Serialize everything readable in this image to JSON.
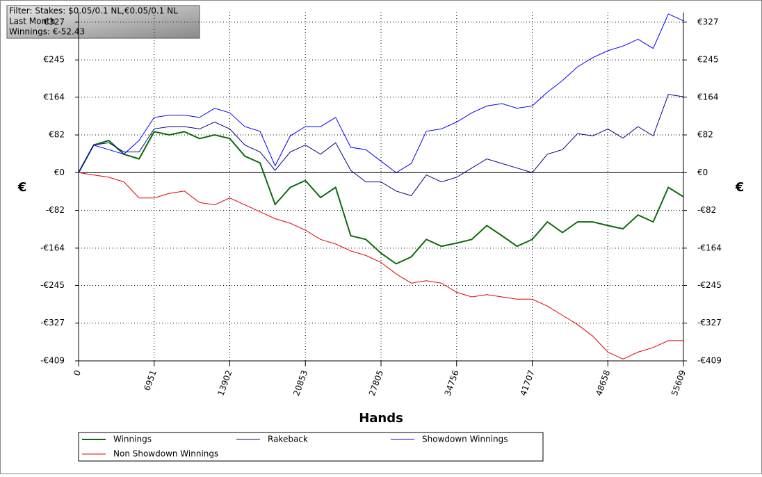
{
  "chart_data": {
    "type": "line",
    "info": [
      "Filter: Stakes: $0.05/0.1 NL,€0.05/0.1 NL",
      "Last Month",
      "Winnings: €-52.43"
    ],
    "x_label": "Hands",
    "y_label": "€",
    "x": [
      0,
      1390,
      2780,
      4170,
      5560,
      6951,
      8341,
      9731,
      11121,
      12512,
      13902,
      15292,
      16682,
      18072,
      19463,
      20853,
      22243,
      23633,
      25024,
      26414,
      27805,
      29195,
      30585,
      31975,
      33365,
      34756,
      36146,
      37536,
      38926,
      40316,
      41707,
      43097,
      44487,
      45877,
      47268,
      48658,
      50048,
      51438,
      52828,
      54219,
      55609
    ],
    "xlim": [
      0,
      55609
    ],
    "xticks": [
      0,
      6951,
      13902,
      20853,
      27805,
      34756,
      41707,
      48658,
      55609
    ],
    "ylim": [
      -409,
      348
    ],
    "yticks": [
      {
        "value": -409,
        "label": "-€409"
      },
      {
        "value": -327,
        "label": "-€327"
      },
      {
        "value": -245,
        "label": "-€245"
      },
      {
        "value": -164,
        "label": "-€164"
      },
      {
        "value": -82,
        "label": "-€82"
      },
      {
        "value": 0,
        "label": "€0"
      },
      {
        "value": 82,
        "label": "€82"
      },
      {
        "value": 164,
        "label": "€164"
      },
      {
        "value": 245,
        "label": "€245"
      },
      {
        "value": 327,
        "label": "€327"
      }
    ],
    "grid": true,
    "series": [
      {
        "name": "Winnings",
        "color": "#0b6a0b",
        "values": [
          0,
          60,
          70,
          40,
          30,
          89,
          82,
          89,
          74,
          82,
          74,
          36,
          21,
          -69,
          -32,
          -17,
          -54,
          -32,
          -137,
          -145,
          -175,
          -198,
          -183,
          -145,
          -160,
          -153,
          -145,
          -115,
          -137,
          -160,
          -145,
          -107,
          -130,
          -107,
          -107,
          -115,
          -122,
          -92,
          -107,
          -32,
          -52.43
        ]
      },
      {
        "name": "Rakeback",
        "color": "#000080",
        "values": [
          0,
          60,
          65,
          45,
          45,
          95,
          100,
          100,
          95,
          110,
          95,
          60,
          45,
          5,
          45,
          60,
          40,
          65,
          5,
          -20,
          -20,
          -40,
          -50,
          -5,
          -20,
          -10,
          10,
          30,
          20,
          10,
          0,
          40,
          50,
          85,
          80,
          95,
          75,
          100,
          80,
          170,
          165
        ]
      },
      {
        "name": "Showdown Winnings",
        "color": "#0000ff",
        "values": [
          0,
          60,
          50,
          40,
          70,
          120,
          125,
          125,
          120,
          140,
          130,
          100,
          90,
          15,
          80,
          100,
          100,
          120,
          55,
          50,
          25,
          0,
          20,
          90,
          95,
          110,
          130,
          145,
          150,
          140,
          145,
          175,
          200,
          230,
          250,
          265,
          275,
          290,
          270,
          345,
          330
        ]
      },
      {
        "name": "Non Showdown Winnings",
        "color": "#e00000",
        "values": [
          0,
          -5,
          -10,
          -20,
          -55,
          -55,
          -45,
          -40,
          -65,
          -70,
          -55,
          -70,
          -85,
          -100,
          -110,
          -125,
          -145,
          -155,
          -170,
          -180,
          -195,
          -220,
          -240,
          -235,
          -240,
          -260,
          -270,
          -265,
          -270,
          -275,
          -275,
          -290,
          -310,
          -330,
          -355,
          -390,
          -405,
          -390,
          -380,
          -365,
          -365
        ]
      }
    ]
  }
}
